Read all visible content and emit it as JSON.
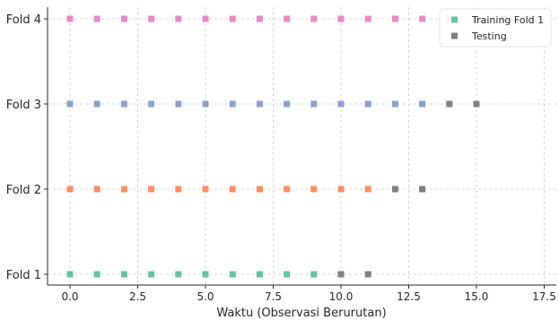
{
  "chart_data": {
    "type": "scatter",
    "xlabel": "Waktu (Observasi Berurutan)",
    "ylabel": "",
    "xlim": [
      -1.75,
      18.0
    ],
    "xticks": [
      "0.0",
      "2.5",
      "5.0",
      "7.5",
      "10.0",
      "12.5",
      "15.0",
      "17.5"
    ],
    "xtick_values": [
      0,
      2.5,
      5,
      7.5,
      10,
      12.5,
      15,
      17.5
    ],
    "categories": [
      "Fold 1",
      "Fold 2",
      "Fold 3",
      "Fold 4"
    ],
    "grid": true,
    "legend_position": "top-right",
    "legend": [
      {
        "label": "Training Fold 1",
        "color": "#66c2a5"
      },
      {
        "label": "Testing",
        "color": "#7f7f7f"
      }
    ],
    "folds": [
      {
        "name": "Fold 1",
        "train_color": "#66c2a5",
        "train_x": [
          0,
          1,
          2,
          3,
          4,
          5,
          6,
          7,
          8,
          9
        ],
        "test_x": [
          10,
          11
        ]
      },
      {
        "name": "Fold 2",
        "train_color": "#fc8d62",
        "train_x": [
          0,
          1,
          2,
          3,
          4,
          5,
          6,
          7,
          8,
          9,
          10,
          11
        ],
        "test_x": [
          12,
          13
        ]
      },
      {
        "name": "Fold 3",
        "train_color": "#8da0cb",
        "train_x": [
          0,
          1,
          2,
          3,
          4,
          5,
          6,
          7,
          8,
          9,
          10,
          11,
          12,
          13
        ],
        "test_x": [
          14,
          15
        ]
      },
      {
        "name": "Fold 4",
        "train_color": "#e78ac3",
        "train_x": [
          0,
          1,
          2,
          3,
          4,
          5,
          6,
          7,
          8,
          9,
          10,
          11,
          12,
          13,
          14,
          15
        ],
        "test_x": [
          16,
          17
        ]
      }
    ],
    "test_color": "#7f7f7f"
  }
}
